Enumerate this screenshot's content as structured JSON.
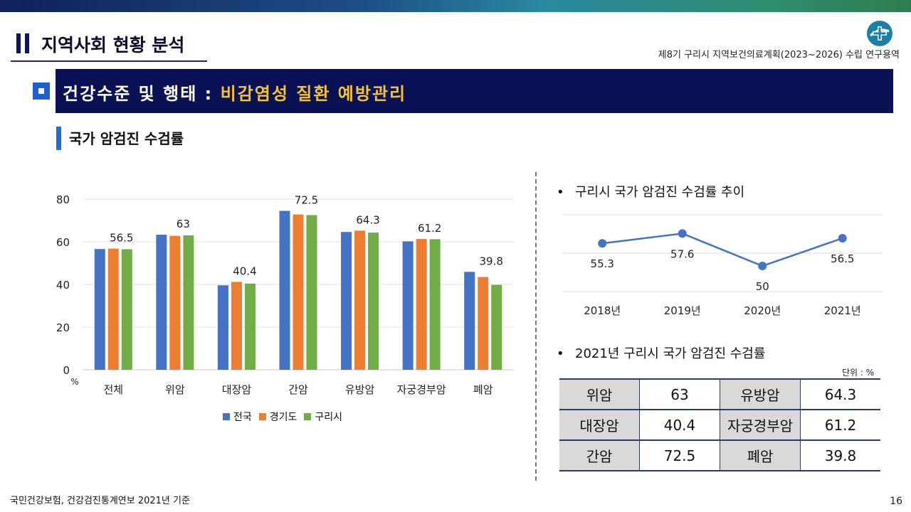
{
  "header": {
    "section_title": "지역사회 현황 분석",
    "project": "제8기 구리시 지역보건의료계획(2023~2026) 수립 연구용역"
  },
  "banner": {
    "title_main": "건강수준 및 행태 : ",
    "title_highlight": "비감염성 질환 예방관리"
  },
  "subtitle": "국가 암검진 수검률",
  "chart_data": [
    {
      "type": "bar",
      "categories": [
        "전체",
        "위암",
        "대장암",
        "간암",
        "유방암",
        "자궁경부암",
        "폐암"
      ],
      "series": [
        {
          "name": "전국",
          "color": "#4472c4",
          "values": [
            56.6,
            63.3,
            39.6,
            74.5,
            64.6,
            60.2,
            45.9
          ]
        },
        {
          "name": "경기도",
          "color": "#ed7d31",
          "values": [
            56.8,
            62.8,
            41.2,
            72.8,
            65.2,
            61.3,
            43.5
          ]
        },
        {
          "name": "구리시",
          "color": "#70ad47",
          "values": [
            56.5,
            63,
            40.4,
            72.5,
            64.3,
            61.2,
            39.8
          ]
        }
      ],
      "data_labels": [
        "56.5",
        "63",
        "40.4",
        "72.5",
        "64.3",
        "61.2",
        "39.8"
      ],
      "yticks": [
        "0",
        "20",
        "40",
        "60",
        "80"
      ],
      "ylim": [
        0,
        80
      ],
      "ylabel": "%",
      "grid": true,
      "legend": "bottom"
    },
    {
      "type": "line",
      "title": "구리시 국가 암검진 수검률 추이",
      "categories": [
        "2018년",
        "2019년",
        "2020년",
        "2021년"
      ],
      "series": [
        {
          "color": "#4472c4",
          "values": [
            55.3,
            57.6,
            50,
            56.5
          ]
        }
      ],
      "data_labels": [
        "55.3",
        "57.6",
        "50",
        "56.5"
      ],
      "grid": true
    }
  ],
  "table": {
    "title": "2021년 구리시 국가 암검진 수검률",
    "unit": "단위 : %",
    "rows": [
      [
        "위암",
        "63",
        "유방암",
        "64.3"
      ],
      [
        "대장암",
        "40.4",
        "자궁경부암",
        "61.2"
      ],
      [
        "간암",
        "72.5",
        "폐암",
        "39.8"
      ]
    ]
  },
  "footer": {
    "source": "국민건강보험, 건강검진통계연보 2021년 기준",
    "page": "16"
  },
  "colors": {
    "navy": "#0b1155",
    "highlight": "#f4c430",
    "accent": "#1f6fd0"
  },
  "icons": {
    "logo": "gurishi-health-logo-icon",
    "section": "double-bar-icon",
    "banner": "square-bullet-icon"
  }
}
